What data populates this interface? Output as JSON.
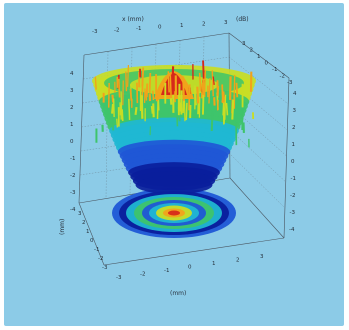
{
  "chart_data": {
    "type": "surface3d",
    "title": "",
    "top_axis_label": "x (mm)",
    "top_right_label": "(dB)",
    "xlabel": "(mm)",
    "ylabel": "(mm)",
    "x_ticks": [
      "-3",
      "-2",
      "-1",
      "0",
      "1",
      "2",
      "3"
    ],
    "y_ticks": [
      "3",
      "2",
      "1",
      "0",
      "-1",
      "-2",
      "-3"
    ],
    "z_ticks": [
      "4",
      "3",
      "2",
      "1",
      "0",
      "-1",
      "-2",
      "-3",
      "-4"
    ],
    "xlim": [
      -3,
      3
    ],
    "ylim": [
      -3,
      3
    ],
    "colormap": [
      "#0a1e9c",
      "#1f57d6",
      "#20b7d2",
      "#3ec46b",
      "#c9dd24",
      "#f1a31b",
      "#d6281a"
    ],
    "surface": "bowl-shaped surface with spiky noise; red peak at center top",
    "projection": "concentric rings beneath (red center, yellow, green, blue outer)"
  }
}
